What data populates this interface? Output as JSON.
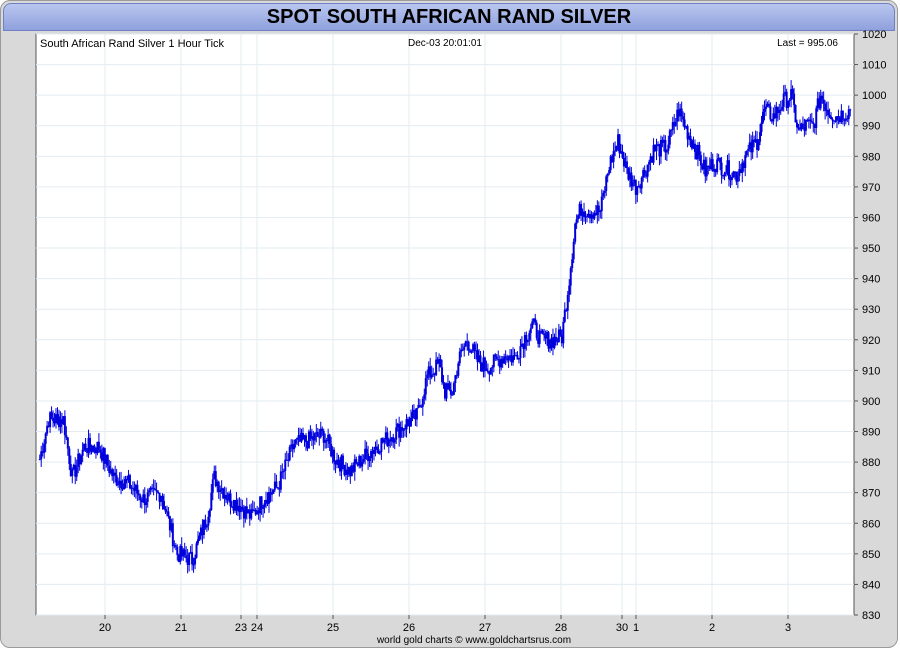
{
  "title": "SPOT SOUTH AFRICAN RAND SILVER",
  "chart_data": {
    "type": "candlestick",
    "label_left": "South African Rand Silver 1 Hour Tick",
    "label_center": "Dec-03  20:01:01",
    "label_right": "Last = 995.06",
    "footer": "world gold charts © www.goldchartsrus.com",
    "ylim": [
      830,
      1020
    ],
    "y_ticks": [
      830,
      840,
      850,
      860,
      870,
      880,
      890,
      900,
      910,
      920,
      930,
      940,
      950,
      960,
      970,
      980,
      990,
      1000,
      1010,
      1020
    ],
    "x_ticks": [
      "20",
      "21",
      "23",
      "24",
      "25",
      "26",
      "27",
      "28",
      "30",
      "1",
      "2",
      "3"
    ],
    "grid": true,
    "color": "#0000dd",
    "last": 995.06,
    "anchors": [
      [
        0,
        881
      ],
      [
        6,
        894
      ],
      [
        16,
        894
      ],
      [
        22,
        875
      ],
      [
        30,
        885
      ],
      [
        40,
        885
      ],
      [
        50,
        875
      ],
      [
        60,
        873
      ],
      [
        70,
        868
      ],
      [
        82,
        870
      ],
      [
        93,
        850
      ],
      [
        103,
        848
      ],
      [
        113,
        862
      ],
      [
        118,
        875
      ],
      [
        128,
        868
      ],
      [
        135,
        866
      ],
      [
        143,
        862
      ],
      [
        151,
        868
      ],
      [
        161,
        872
      ],
      [
        172,
        886
      ],
      [
        181,
        887
      ],
      [
        192,
        889
      ],
      [
        200,
        881
      ],
      [
        210,
        877
      ],
      [
        220,
        882
      ],
      [
        227,
        885
      ],
      [
        236,
        888
      ],
      [
        246,
        892
      ],
      [
        255,
        895
      ],
      [
        262,
        908
      ],
      [
        270,
        912
      ],
      [
        274,
        903
      ],
      [
        279,
        903
      ],
      [
        283,
        913
      ],
      [
        289,
        920
      ],
      [
        296,
        913
      ],
      [
        303,
        911
      ],
      [
        309,
        913
      ],
      [
        315,
        915
      ],
      [
        321,
        914
      ],
      [
        327,
        920
      ],
      [
        333,
        925
      ],
      [
        339,
        920
      ],
      [
        347,
        920
      ],
      [
        353,
        921
      ],
      [
        358,
        940
      ],
      [
        362,
        958
      ],
      [
        366,
        963
      ],
      [
        372,
        962
      ],
      [
        379,
        962
      ],
      [
        385,
        977
      ],
      [
        391,
        985
      ],
      [
        397,
        975
      ],
      [
        403,
        970
      ],
      [
        409,
        975
      ],
      [
        415,
        982
      ],
      [
        424,
        983
      ],
      [
        432,
        995
      ],
      [
        438,
        988
      ],
      [
        444,
        982
      ],
      [
        450,
        975
      ],
      [
        456,
        978
      ],
      [
        464,
        976
      ],
      [
        471,
        974
      ],
      [
        477,
        980
      ],
      [
        485,
        985
      ],
      [
        490,
        995
      ],
      [
        496,
        993
      ],
      [
        503,
        998
      ],
      [
        508,
        1000
      ],
      [
        513,
        988
      ],
      [
        518,
        990
      ],
      [
        523,
        990
      ],
      [
        528,
        1000
      ],
      [
        533,
        995
      ],
      [
        538,
        993
      ],
      [
        543,
        994
      ],
      [
        548,
        995
      ]
    ]
  }
}
